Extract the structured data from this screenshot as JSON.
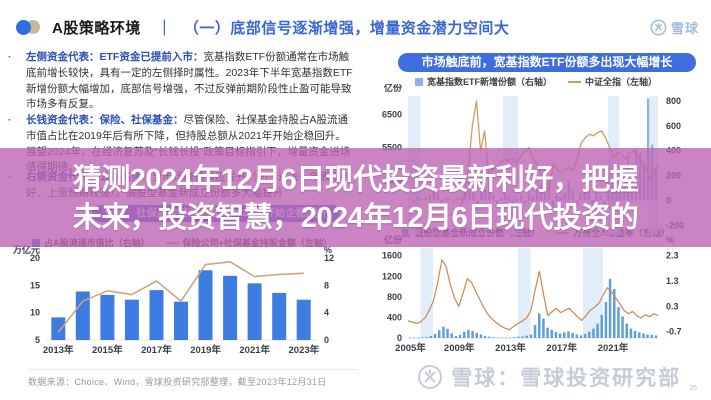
{
  "header": {
    "section_title": "A股策略环境",
    "separator": "｜",
    "page_title": "（一）底部信号逐渐增强，增量资金潜力空间大",
    "brand": "雪球"
  },
  "bullets": [
    {
      "lead": "左侧资金代表：ETF资金已提前入市：",
      "body": "宽基指数ETF份额通常在市场触底前增长较快，具有一定的左侧择时属性。2023年下半年宽基指数ETF新增份额大幅增加，底部信号增强，不过反弹前期阶段性止盈可能导致市场多有反复。"
    },
    {
      "lead": "长钱资金代表：保险、社保基金：",
      "body": "尽管保险、社保基金持股占A股流通市值占比在2019年后有所下降，但持股总额从2021年开始企稳回升。展望2024年，在经济复苏及“长钱长投”政策目标指引下，增量资金进场值得期待。"
    },
    {
      "lead": "右侧资金代表：公募基金：",
      "body": "当市场赚钱效应提升（如：过去一年表现较好、上涨预期较强），偏股型基金新成立份额多大幅提升"
    }
  ],
  "overlay": {
    "line1": "猜测2024年12月6日现代投资最新利好，把握",
    "line2": "未来，投资智慧，2024年12月6日现代投资的",
    "band_color": "#bd64b4"
  },
  "banners": {
    "left": "保险、社保基金持股总额从2021年开始企稳回升",
    "right": "市场触底前，宽基指数ETF份额多出现大幅增长",
    "pill_color": "#3e6de0"
  },
  "footer": {
    "source": "数据来源：Choice、Wind，雪球投资研究部整理，截至2023年12月31日"
  },
  "watermark": {
    "brand": "雪球：雪球投资研究部",
    "page": "26"
  },
  "chart_data": [
    {
      "id": "chartA",
      "type": "bar",
      "legend": {
        "bars": "占A股流通市值比（右轴）",
        "line": "保险公司+社保基金持股金额（左轴）"
      },
      "left_header": "万亿元",
      "right_header": "%",
      "left_ticks": [
        20,
        15,
        10,
        5
      ],
      "right_ticks": [
        12,
        8,
        4,
        0
      ],
      "left_lim": [
        5,
        20
      ],
      "right_lim": [
        0,
        12
      ],
      "categories": [
        "2013",
        "2014",
        "2015",
        "2016",
        "2017",
        "2018",
        "2019",
        "2020",
        "2021",
        "2022",
        "2023"
      ],
      "x_labels": [
        {
          "f": 0.045,
          "label": "2013年"
        },
        {
          "f": 0.227,
          "label": "2015年"
        },
        {
          "f": 0.409,
          "label": "2017年"
        },
        {
          "f": 0.591,
          "label": "2019年"
        },
        {
          "f": 0.773,
          "label": "2021年"
        },
        {
          "f": 0.955,
          "label": "2023年"
        }
      ],
      "bars": {
        "axis": "right",
        "color": "#3d7ce0",
        "width": 14,
        "values": [
          3.3,
          7.1,
          6.6,
          5.9,
          7.3,
          5.6,
          10.2,
          9.4,
          8.3,
          6.9,
          5.9
        ]
      },
      "line": {
        "axis": "left",
        "color": "#c9a87c",
        "align": "center",
        "stroke": 1.6,
        "values": [
          6.4,
          12.1,
          14.0,
          13.3,
          15.8,
          12.1,
          18.8,
          19.3,
          16.6,
          17.0,
          17.2
        ]
      }
    },
    {
      "id": "chartB",
      "type": "line",
      "legend": {
        "bars": "宽基指数ETF新增份额（右轴）",
        "line": "中证全指（左轴）"
      },
      "left_header": "亿份",
      "left_ticks": [
        6500,
        5500,
        4500
      ],
      "right_ticks": [
        800,
        600,
        400,
        200,
        0,
        -200
      ],
      "left_lim": [
        2900,
        7050
      ],
      "right_lim": [
        -270,
        840
      ],
      "x_range": [
        "2012",
        "2024"
      ],
      "bands": [
        [
          0.0,
          0.05
        ],
        [
          0.38,
          0.44
        ],
        [
          0.8,
          0.845
        ],
        [
          0.965,
          1.0
        ]
      ],
      "bars": {
        "axis": "right",
        "color": "#8fb4e3",
        "values": [
          20,
          -15,
          30,
          10,
          25,
          40,
          120,
          60,
          -30,
          20,
          15,
          -20,
          25,
          30,
          80,
          150,
          60,
          -80,
          200,
          90,
          180,
          40,
          -30,
          20,
          50,
          30,
          -25,
          15,
          40,
          -20,
          60,
          30,
          90,
          120,
          250,
          160,
          -60,
          40,
          30,
          60,
          150,
          80,
          -40,
          60,
          90,
          70,
          -50,
          120,
          40,
          -60,
          280,
          150,
          90,
          200,
          160,
          350,
          220,
          420,
          380,
          300,
          820,
          450,
          260
        ]
      },
      "line": {
        "axis": "left",
        "color": "#d49a62",
        "stroke": 1.3,
        "values": [
          3350,
          3250,
          3150,
          3050,
          3120,
          3280,
          3380,
          3320,
          3300,
          3400,
          3450,
          3500,
          3550,
          3700,
          4100,
          4900,
          6200,
          6900,
          5400,
          6000,
          4700,
          4850,
          4950,
          5050,
          5150,
          5100,
          5150,
          5050,
          5250,
          5400,
          5500,
          5200,
          5000,
          4700,
          4300,
          4200,
          5000,
          4850,
          4750,
          4850,
          4900,
          4800,
          5200,
          5650,
          5800,
          5900,
          5850,
          5950,
          6000,
          5800,
          5500,
          5200,
          5350,
          5300,
          5150,
          5350,
          5400,
          5250,
          5050,
          4900,
          4550,
          4700,
          5000
        ]
      }
    },
    {
      "id": "chartC",
      "type": "line",
      "legend": {
        "bars": "偏股型基金新成立份额（左轴）",
        "line": "万得全A收益率（右轴）"
      },
      "left_header": "亿份",
      "right_header": "%",
      "left_ticks": [
        1600,
        1200,
        800,
        400,
        0
      ],
      "right_ticks": [
        2.3,
        1.3,
        0.3,
        -0.7
      ],
      "left_lim": [
        0,
        1750
      ],
      "right_lim": [
        -0.95,
        2.6
      ],
      "x_labels": [
        {
          "f": 0.01,
          "label": "2005年"
        },
        {
          "f": 0.205,
          "label": "2009年"
        },
        {
          "f": 0.41,
          "label": "2013年"
        },
        {
          "f": 0.615,
          "label": "2017年"
        },
        {
          "f": 0.82,
          "label": "2021年"
        }
      ],
      "bands": [
        [
          0.05,
          0.1
        ],
        [
          0.44,
          0.49
        ],
        [
          0.7,
          0.78
        ]
      ],
      "bars": {
        "axis": "left",
        "color": "#5e9fd8",
        "values": [
          10,
          5,
          8,
          12,
          20,
          40,
          80,
          150,
          220,
          180,
          90,
          40,
          60,
          120,
          160,
          140,
          100,
          70,
          40,
          25,
          15,
          10,
          8,
          6,
          10,
          15,
          25,
          30,
          45,
          70,
          250,
          480,
          380,
          200,
          160,
          120,
          90,
          110,
          130,
          100,
          70,
          50,
          80,
          120,
          180,
          280,
          450,
          700,
          1150,
          950,
          600,
          420,
          280,
          180,
          140,
          110,
          90,
          70,
          60,
          50
        ]
      },
      "line": {
        "axis": "right",
        "color": "#cd8850",
        "stroke": 1.2,
        "values": [
          -0.28,
          -0.32,
          -0.37,
          -0.32,
          -0.16,
          0.14,
          0.51,
          1.24,
          2.14,
          1.87,
          1.14,
          0.62,
          0.3,
          0.82,
          1.39,
          1.24,
          0.89,
          0.55,
          0.22,
          -0.05,
          -0.22,
          -0.37,
          -0.49,
          -0.57,
          -0.62,
          -0.49,
          -0.37,
          -0.28,
          -0.16,
          0.14,
          0.93,
          1.68,
          0.76,
          -0.07,
          0.09,
          0.22,
          0.05,
          0.14,
          0.22,
          0.05,
          -0.11,
          -0.26,
          -0.07,
          0.14,
          0.26,
          0.41,
          0.72,
          1.03,
          0.89,
          0.64,
          0.39,
          0.14,
          0.01,
          0.09,
          -0.07,
          -0.16,
          -0.03,
          -0.11,
          0.01,
          -0.07
        ]
      }
    }
  ]
}
